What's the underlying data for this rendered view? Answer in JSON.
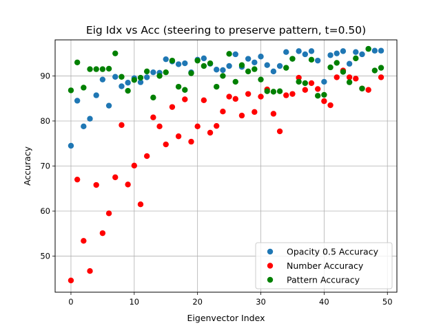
{
  "chart_data": {
    "type": "scatter",
    "title": "Eig Idx vs Acc (steering to preserve pattern, t=0.50)",
    "xlabel": "Eigenvector Index",
    "ylabel": "Accuracy",
    "xlim": [
      -2.5,
      51.5
    ],
    "ylim": [
      42,
      98
    ],
    "xticks": [
      0,
      10,
      20,
      30,
      40,
      50
    ],
    "yticks": [
      50,
      60,
      70,
      80,
      90
    ],
    "grid": true,
    "legend_position": "lower-right",
    "x": [
      0,
      1,
      2,
      3,
      4,
      5,
      6,
      7,
      8,
      9,
      10,
      11,
      12,
      13,
      14,
      15,
      16,
      17,
      18,
      19,
      20,
      21,
      22,
      23,
      24,
      25,
      26,
      27,
      28,
      29,
      30,
      31,
      32,
      33,
      34,
      35,
      36,
      37,
      38,
      39,
      40,
      41,
      42,
      43,
      44,
      45,
      46,
      47,
      48,
      49
    ],
    "series": [
      {
        "name": "Opacity 0.5 Accuracy",
        "color": "#1f77b4",
        "values": [
          74.5,
          84.5,
          78.8,
          80.5,
          85.7,
          89.2,
          83.4,
          89.8,
          87.7,
          88.5,
          89.5,
          88.6,
          89.7,
          90.8,
          90.7,
          93.7,
          93.2,
          92.6,
          92.8,
          90.8,
          93.6,
          93.9,
          92.7,
          91.4,
          91.3,
          92.2,
          94.8,
          92.0,
          93.8,
          93.0,
          94.3,
          92.4,
          91.0,
          92.2,
          95.3,
          93.8,
          95.5,
          94.8,
          95.5,
          93.4,
          88.7,
          94.6,
          95.0,
          95.5,
          92.7,
          95.3,
          94.8,
          96.0,
          95.6,
          95.6
        ]
      },
      {
        "name": "Number Accuracy",
        "color": "#ff0000",
        "values": [
          44.6,
          67.0,
          53.4,
          46.7,
          65.8,
          55.1,
          59.5,
          67.5,
          79.1,
          65.9,
          70.1,
          61.5,
          72.2,
          80.8,
          78.8,
          74.8,
          83.1,
          76.6,
          84.8,
          75.4,
          78.8,
          84.6,
          77.4,
          78.9,
          82.1,
          85.4,
          84.9,
          81.2,
          86.0,
          82.0,
          85.4,
          87.0,
          81.6,
          77.7,
          85.7,
          86.0,
          89.6,
          86.9,
          88.4,
          87.1,
          84.4,
          83.5,
          89.7,
          91.2,
          89.7,
          89.4,
          87.2,
          86.9,
          null,
          89.7
        ]
      },
      {
        "name": "Pattern Accuracy",
        "color": "#008000",
        "values": [
          86.8,
          93.0,
          87.4,
          91.5,
          91.5,
          91.5,
          91.6,
          95.0,
          89.8,
          86.7,
          89.1,
          89.6,
          91.0,
          85.2,
          90.0,
          90.8,
          93.4,
          87.6,
          86.9,
          90.6,
          93.4,
          92.2,
          92.8,
          87.6,
          90.0,
          94.9,
          88.7,
          92.4,
          91.0,
          91.5,
          89.2,
          86.6,
          86.5,
          86.6,
          91.8,
          93.8,
          88.7,
          88.4,
          93.6,
          85.6,
          85.8,
          91.9,
          92.9,
          90.9,
          88.6,
          93.9,
          87.2,
          96.0,
          91.2,
          91.8
        ]
      }
    ]
  }
}
